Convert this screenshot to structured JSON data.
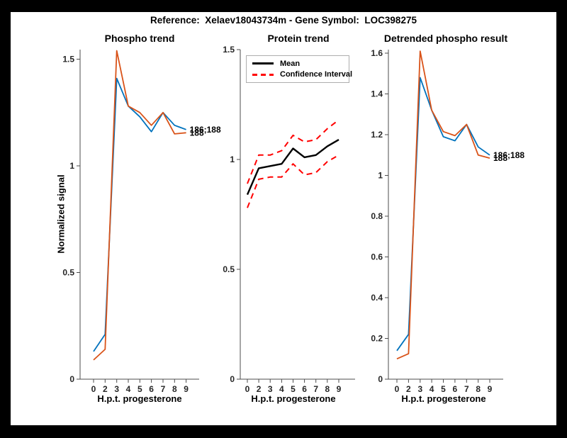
{
  "figure": {
    "title": "Reference:  Xelaev18043734m - Gene Symbol:  LOC398275",
    "ylabel": "Normalized signal"
  },
  "colors": {
    "blue": "#0072BD",
    "orange": "#D95319",
    "mean": "#000000",
    "ci": "#FF0000",
    "axis": "#4d4d4d",
    "figure_bg": "#FFFFFF",
    "page_bg": "#000000"
  },
  "legend": {
    "mean_label": "Mean",
    "ci_label": "Confidence Interval"
  },
  "chart_data": [
    {
      "type": "line",
      "title": "Phospho trend",
      "xlabel": "H.p.t. progesterone",
      "ylabel": "Normalized signal",
      "x_labels": [
        "0",
        "2",
        "3",
        "4",
        "5",
        "6",
        "7",
        "8",
        "9"
      ],
      "yticks": [
        0,
        0.5,
        1,
        1.5
      ],
      "ylim": [
        0,
        1.545
      ],
      "grid": false,
      "series": [
        {
          "name": "186;188",
          "color_key": "blue",
          "style": "solid",
          "end_label": "186;188",
          "values": [
            0.13,
            0.21,
            1.41,
            1.28,
            1.23,
            1.16,
            1.25,
            1.19,
            1.17
          ]
        },
        {
          "name": "188",
          "color_key": "orange",
          "style": "solid",
          "end_label": "188",
          "values": [
            0.09,
            0.14,
            1.54,
            1.28,
            1.25,
            1.19,
            1.25,
            1.15,
            1.155
          ]
        }
      ]
    },
    {
      "type": "line",
      "title": "Protein trend",
      "xlabel": "H.p.t. progesterone",
      "x_labels": [
        "0",
        "2",
        "3",
        "4",
        "5",
        "6",
        "7",
        "8",
        "9"
      ],
      "yticks": [
        0,
        0.5,
        1,
        1.5
      ],
      "ylim": [
        0,
        1.5
      ],
      "grid": false,
      "legend_position": "top-left",
      "series": [
        {
          "name": "Confidence Interval upper",
          "color_key": "ci",
          "style": "dashed",
          "values": [
            0.89,
            1.02,
            1.02,
            1.04,
            1.11,
            1.08,
            1.09,
            1.14,
            1.18
          ]
        },
        {
          "name": "Confidence Interval lower",
          "color_key": "ci",
          "style": "dashed",
          "values": [
            0.78,
            0.91,
            0.92,
            0.92,
            0.98,
            0.93,
            0.94,
            0.99,
            1.02
          ]
        },
        {
          "name": "Mean",
          "color_key": "mean",
          "style": "solid",
          "values": [
            0.84,
            0.96,
            0.97,
            0.98,
            1.05,
            1.01,
            1.02,
            1.06,
            1.09
          ]
        }
      ]
    },
    {
      "type": "line",
      "title": "Detrended phospho result",
      "xlabel": "H.p.t. progesterone",
      "x_labels": [
        "0",
        "2",
        "3",
        "4",
        "5",
        "6",
        "7",
        "8",
        "9"
      ],
      "yticks": [
        0,
        0.2,
        0.4,
        0.6,
        0.8,
        1,
        1.2,
        1.4,
        1.6
      ],
      "ylim": [
        0,
        1.617
      ],
      "grid": false,
      "series": [
        {
          "name": "186;188",
          "color_key": "blue",
          "style": "solid",
          "end_label": "186;188",
          "values": [
            0.14,
            0.22,
            1.48,
            1.32,
            1.19,
            1.17,
            1.25,
            1.14,
            1.1
          ]
        },
        {
          "name": "188",
          "color_key": "orange",
          "style": "solid",
          "end_label": "188",
          "values": [
            0.1,
            0.125,
            1.61,
            1.32,
            1.215,
            1.195,
            1.25,
            1.1,
            1.085
          ]
        }
      ]
    }
  ]
}
